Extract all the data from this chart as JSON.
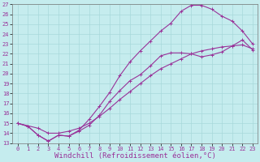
{
  "xlabel": "Windchill (Refroidissement éolien,°C)",
  "xlim": [
    -0.5,
    23.5
  ],
  "ylim": [
    13,
    27
  ],
  "xticks": [
    0,
    1,
    2,
    3,
    4,
    5,
    6,
    7,
    8,
    9,
    10,
    11,
    12,
    13,
    14,
    15,
    16,
    17,
    18,
    19,
    20,
    21,
    22,
    23
  ],
  "yticks": [
    13,
    14,
    15,
    16,
    17,
    18,
    19,
    20,
    21,
    22,
    23,
    24,
    25,
    26,
    27
  ],
  "background_color": "#c5ecee",
  "grid_color": "#a8d8da",
  "line_color": "#993399",
  "line1_x": [
    0,
    1,
    2,
    3,
    4,
    5,
    6,
    7,
    8,
    9,
    10,
    11,
    12,
    13,
    14,
    15,
    16,
    17,
    18,
    19,
    20,
    21,
    22,
    23
  ],
  "line1_y": [
    15.0,
    14.7,
    13.8,
    13.2,
    13.8,
    13.7,
    14.2,
    14.8,
    15.8,
    17.2,
    18.3,
    19.3,
    19.9,
    20.8,
    21.8,
    22.1,
    22.1,
    22.0,
    21.7,
    21.9,
    22.2,
    22.8,
    23.4,
    22.4
  ],
  "line2_x": [
    0,
    1,
    2,
    3,
    4,
    5,
    6,
    7,
    8,
    9,
    10,
    11,
    12,
    13,
    14,
    15,
    16,
    17,
    18,
    19,
    20,
    21,
    22,
    23
  ],
  "line2_y": [
    15.0,
    14.7,
    13.8,
    13.2,
    13.8,
    13.7,
    14.3,
    15.4,
    16.7,
    18.1,
    19.8,
    21.2,
    22.3,
    23.3,
    24.3,
    25.1,
    26.3,
    26.9,
    26.9,
    26.5,
    25.8,
    25.3,
    24.3,
    23.0
  ],
  "line3_x": [
    0,
    2,
    3,
    4,
    5,
    6,
    7,
    8,
    9,
    10,
    11,
    12,
    13,
    14,
    15,
    16,
    17,
    18,
    19,
    20,
    21,
    22,
    23
  ],
  "line3_y": [
    15.0,
    14.5,
    14.0,
    14.0,
    14.2,
    14.5,
    15.0,
    15.7,
    16.5,
    17.4,
    18.2,
    19.0,
    19.8,
    20.5,
    21.0,
    21.5,
    22.0,
    22.3,
    22.5,
    22.7,
    22.8,
    22.9,
    22.5
  ],
  "marker": "+",
  "marker_size": 3,
  "linewidth": 0.8,
  "tick_fontsize": 5,
  "xlabel_fontsize": 6.5,
  "dpi": 100,
  "figsize": [
    3.2,
    2.0
  ]
}
